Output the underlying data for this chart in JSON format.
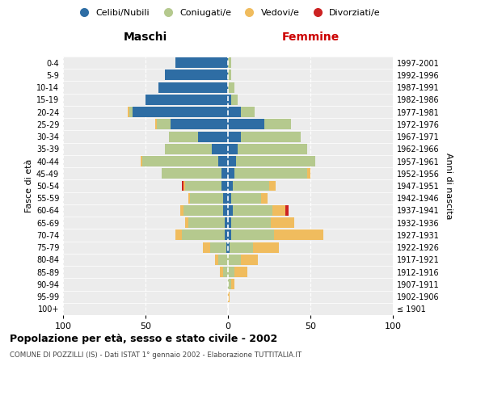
{
  "age_groups": [
    "100+",
    "95-99",
    "90-94",
    "85-89",
    "80-84",
    "75-79",
    "70-74",
    "65-69",
    "60-64",
    "55-59",
    "50-54",
    "45-49",
    "40-44",
    "35-39",
    "30-34",
    "25-29",
    "20-24",
    "15-19",
    "10-14",
    "5-9",
    "0-4"
  ],
  "birth_years": [
    "≤ 1901",
    "1902-1906",
    "1907-1911",
    "1912-1916",
    "1917-1921",
    "1922-1926",
    "1927-1931",
    "1932-1936",
    "1937-1941",
    "1942-1946",
    "1947-1951",
    "1952-1956",
    "1957-1961",
    "1962-1966",
    "1967-1971",
    "1972-1976",
    "1977-1981",
    "1982-1986",
    "1987-1991",
    "1992-1996",
    "1997-2001"
  ],
  "colors": {
    "celibi": "#2e6da4",
    "coniugati": "#b5c98e",
    "vedovi": "#f0bc5e",
    "divorziati": "#cc2222"
  },
  "maschi": {
    "celibi": [
      0,
      0,
      0,
      0,
      0,
      1,
      2,
      2,
      3,
      3,
      4,
      4,
      6,
      10,
      18,
      35,
      58,
      50,
      42,
      38,
      32
    ],
    "coniugati": [
      0,
      0,
      0,
      3,
      6,
      10,
      26,
      22,
      24,
      20,
      22,
      36,
      46,
      28,
      18,
      8,
      2,
      0,
      0,
      0,
      0
    ],
    "vedovi": [
      0,
      0,
      0,
      2,
      2,
      4,
      4,
      2,
      2,
      1,
      1,
      0,
      1,
      0,
      0,
      1,
      1,
      0,
      0,
      0,
      0
    ],
    "divorziati": [
      0,
      0,
      0,
      0,
      0,
      0,
      0,
      0,
      0,
      0,
      1,
      0,
      0,
      0,
      0,
      0,
      0,
      0,
      0,
      0,
      0
    ]
  },
  "femmine": {
    "celibi": [
      0,
      0,
      0,
      0,
      0,
      1,
      2,
      2,
      3,
      2,
      3,
      4,
      5,
      6,
      8,
      22,
      8,
      2,
      0,
      0,
      0
    ],
    "coniugati": [
      0,
      0,
      2,
      4,
      8,
      14,
      26,
      24,
      24,
      18,
      22,
      44,
      48,
      42,
      36,
      16,
      8,
      4,
      4,
      2,
      2
    ],
    "vedovi": [
      0,
      1,
      2,
      8,
      10,
      16,
      30,
      14,
      8,
      4,
      4,
      2,
      0,
      0,
      0,
      0,
      0,
      0,
      0,
      0,
      0
    ],
    "divorziati": [
      0,
      0,
      0,
      0,
      0,
      0,
      0,
      0,
      2,
      0,
      0,
      0,
      0,
      0,
      0,
      0,
      0,
      0,
      0,
      0,
      0
    ]
  },
  "xlim": 100,
  "title": "Popolazione per età, sesso e stato civile - 2002",
  "subtitle": "COMUNE DI POZZILLI (IS) - Dati ISTAT 1° gennaio 2002 - Elaborazione TUTTITALIA.IT",
  "ylabel": "Fasce di età",
  "ylabel_right": "Anni di nascita",
  "xlabel_left": "Maschi",
  "xlabel_right": "Femmine",
  "bg_color": "#ececec"
}
